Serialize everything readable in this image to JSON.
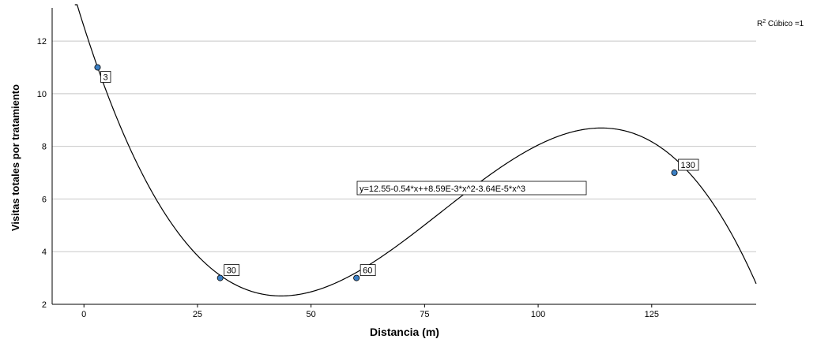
{
  "chart_data": {
    "type": "scatter",
    "xlabel": "Distancia (m)",
    "ylabel": "Visitas totales por tratamiento",
    "xlim": [
      -7,
      148
    ],
    "ylim": [
      2,
      13.2
    ],
    "xticks": [
      "0",
      "25",
      "50",
      "75",
      "100",
      "125"
    ],
    "yticks": [
      "2",
      "4",
      "6",
      "8",
      "10",
      "12"
    ],
    "grid": "horizontal",
    "points": [
      {
        "x": 3,
        "y": 11,
        "label": "3"
      },
      {
        "x": 30,
        "y": 3,
        "label": "30"
      },
      {
        "x": 60,
        "y": 3,
        "label": "60"
      },
      {
        "x": 130,
        "y": 7,
        "label": "130"
      }
    ],
    "fit": {
      "type": "cubic",
      "equation_label": "y=12.55-0.54*x++8.59E-3*x^2-3.64E-5*x^3",
      "coefficients": [
        12.55,
        -0.54,
        0.00859,
        -3.64e-05
      ]
    },
    "rsquared": {
      "prefix": "R",
      "sup": "2",
      "text": " Cúbico =1"
    },
    "colors": {
      "point": "#3b7fc4",
      "line": "#000000",
      "grid": "#c8c8c8"
    }
  }
}
